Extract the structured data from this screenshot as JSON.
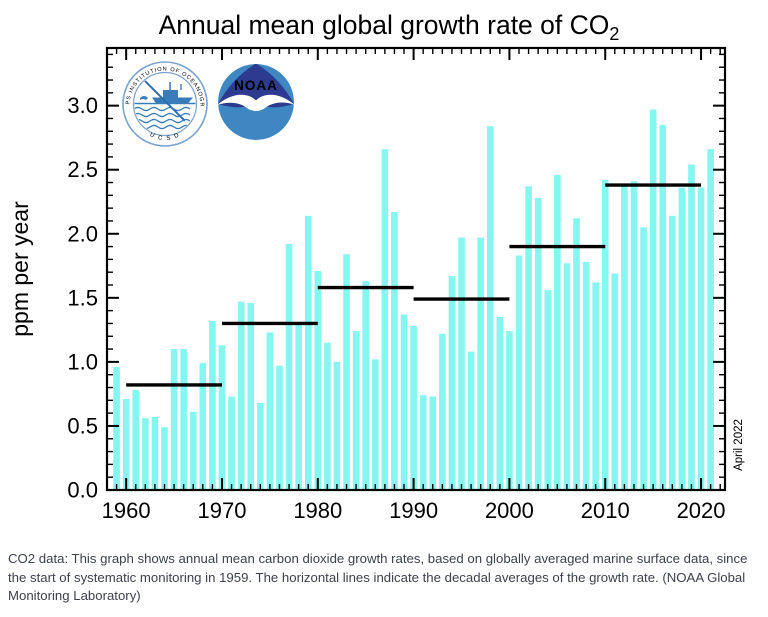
{
  "header": {
    "title_main": "Annual mean global growth rate of CO",
    "title_sub": "2"
  },
  "chart_data": {
    "type": "bar",
    "title": "Annual mean global growth rate of CO2",
    "ylabel": "ppm per year",
    "xlabel": "",
    "annotation": "April 2022",
    "legend": "none",
    "grid": false,
    "ylim": [
      0,
      3.45
    ],
    "xlim": [
      1958.0,
      2022.5
    ],
    "y_major_ticks": [
      0.0,
      0.5,
      1.0,
      1.5,
      2.0,
      2.5,
      3.0
    ],
    "y_minor_step": 0.1,
    "x_major_ticks": [
      1960,
      1970,
      1980,
      1990,
      2000,
      2010,
      2020
    ],
    "x_minor_step": 1,
    "bar_color": "#86f6f0",
    "line_color": "#000000",
    "years": [
      1959,
      1960,
      1961,
      1962,
      1963,
      1964,
      1965,
      1966,
      1967,
      1968,
      1969,
      1970,
      1971,
      1972,
      1973,
      1974,
      1975,
      1976,
      1977,
      1978,
      1979,
      1980,
      1981,
      1982,
      1983,
      1984,
      1985,
      1986,
      1987,
      1988,
      1989,
      1990,
      1991,
      1992,
      1993,
      1994,
      1995,
      1996,
      1997,
      1998,
      1999,
      2000,
      2001,
      2002,
      2003,
      2004,
      2005,
      2006,
      2007,
      2008,
      2009,
      2010,
      2011,
      2012,
      2013,
      2014,
      2015,
      2016,
      2017,
      2018,
      2019,
      2020,
      2021
    ],
    "values": [
      0.96,
      0.71,
      0.78,
      0.56,
      0.57,
      0.49,
      1.1,
      1.1,
      0.61,
      0.99,
      1.32,
      1.13,
      0.73,
      1.47,
      1.46,
      0.68,
      1.23,
      0.97,
      1.92,
      1.29,
      2.14,
      1.71,
      1.15,
      1.0,
      1.84,
      1.24,
      1.63,
      1.02,
      2.66,
      2.17,
      1.37,
      1.28,
      0.74,
      0.73,
      1.22,
      1.67,
      1.97,
      1.08,
      1.97,
      2.84,
      1.35,
      1.24,
      1.83,
      2.37,
      2.28,
      1.56,
      2.46,
      1.77,
      2.12,
      1.78,
      1.62,
      2.42,
      1.69,
      2.39,
      2.41,
      2.05,
      2.97,
      2.85,
      2.14,
      2.36,
      2.54,
      2.36,
      2.66
    ],
    "decadal_averages": [
      {
        "start": 1960,
        "end": 1970,
        "value": 0.82
      },
      {
        "start": 1970,
        "end": 1980,
        "value": 1.3
      },
      {
        "start": 1980,
        "end": 1990,
        "value": 1.58
      },
      {
        "start": 1990,
        "end": 2000,
        "value": 1.49
      },
      {
        "start": 2000,
        "end": 2010,
        "value": 1.9
      },
      {
        "start": 2010,
        "end": 2020,
        "value": 2.38
      }
    ]
  },
  "logos": {
    "scripps": {
      "ring_text_top": "SCRIPPS INSTITUTION OF OCEANOGRAPHY",
      "ring_text_bottom": "U C S D"
    },
    "noaa": {
      "label": "NOAA",
      "navy": "#2c3b90",
      "light_blue": "#3e87c2"
    }
  },
  "caption": {
    "text": "CO2 data: This graph shows annual mean carbon dioxide growth rates, based on globally averaged marine surface data, since the start of systematic monitoring in 1959. The horizontal lines indicate the decadal averages of the growth rate. (NOAA Global Monitoring Laboratory)"
  }
}
